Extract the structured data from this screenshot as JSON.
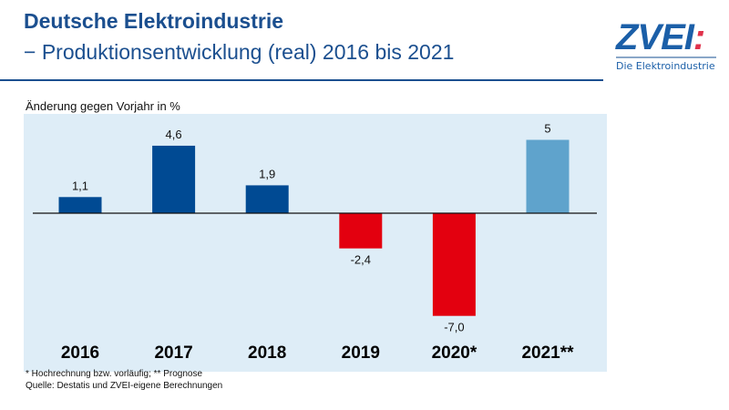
{
  "header": {
    "title": "Deutsche Elektroindustrie",
    "subtitle": "− Produktionsentwicklung (real) 2016 bis 2021"
  },
  "logo": {
    "text": "ZVEI",
    "tagline": "Die Elektroindustrie"
  },
  "chart_data": {
    "type": "bar",
    "ylabel": "Änderung gegen Vorjahr in %",
    "categories": [
      "2016",
      "2017",
      "2018",
      "2019",
      "2020*",
      "2021**"
    ],
    "values": [
      1.1,
      4.6,
      1.9,
      -2.4,
      -7.0,
      5
    ],
    "labels": [
      "1,1",
      "4,6",
      "1,9",
      "-2,4",
      "-7,0",
      "5"
    ],
    "colors": [
      "#004a93",
      "#004a93",
      "#004a93",
      "#e3000f",
      "#e3000f",
      "#5fa3cc"
    ],
    "background": "#deedf7",
    "grid": false
  },
  "footnotes": [
    "* Hochrechnung bzw. vorläufig; ** Prognose",
    "Quelle: Destatis und ZVEI-eigene Berechnungen"
  ]
}
